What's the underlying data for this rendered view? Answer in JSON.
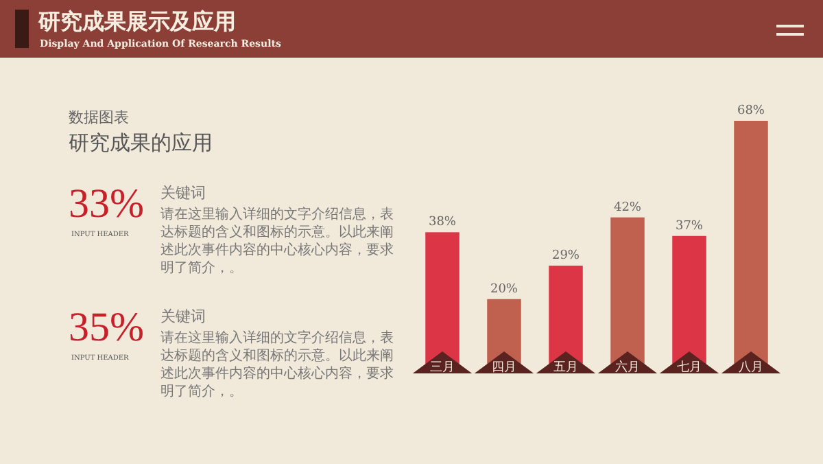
{
  "chart_data": {
    "type": "bar",
    "title": "研究成果展示及应用",
    "subtitle": "Display And Application Of Research Results",
    "categories": [
      "三月",
      "四月",
      "五月",
      "六月",
      "七月",
      "八月"
    ],
    "values": [
      38,
      20,
      29,
      42,
      37,
      68
    ],
    "colors": [
      "#dc3545",
      "#c0604f",
      "#dc3545",
      "#c0604f",
      "#dc3545",
      "#c0604f"
    ],
    "value_labels": [
      "38%",
      "20%",
      "29%",
      "42%",
      "37%",
      "68%"
    ],
    "annotations": [
      "数据图表",
      "研究成果的应用",
      "33%",
      "INPUT HEADER",
      "关键词",
      "请在这里输入详细的文字介绍信息，表达标题的含义和图标的示意。以此来阐述此次事件内容的中心核心内容，要求明了简介，。",
      "35%",
      "INPUT HEADER",
      "关键词",
      "请在这里输入详细的文字介绍信息，表达标题的含义和图标的示意。以此来阐述此次事件内容的中心核心内容，要求明了简介，。"
    ]
  }
}
